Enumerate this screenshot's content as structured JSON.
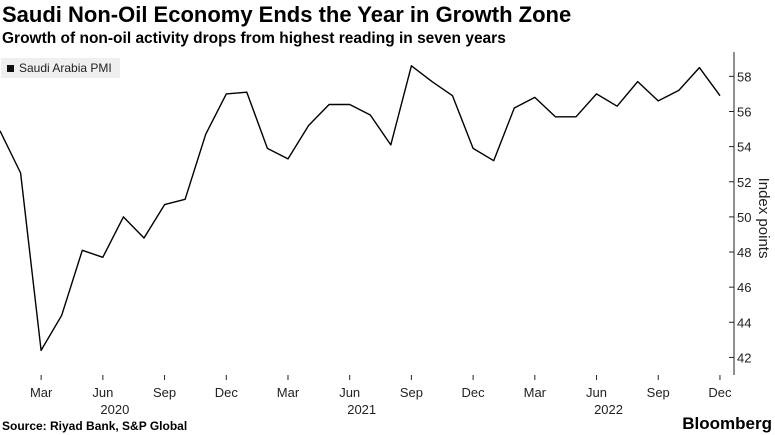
{
  "title": "Saudi Non-Oil Economy Ends the Year in Growth Zone",
  "subtitle": "Growth of non-oil activity drops from highest reading in seven years",
  "source": "Source: Riyad Bank, S&P Global",
  "brand": "Bloomberg",
  "chart_data": {
    "type": "line",
    "title": "Saudi Non-Oil Economy Ends the Year in Growth Zone",
    "subtitle": "Growth of non-oil activity drops from highest reading in seven years",
    "ylabel": "Index points",
    "ylim": [
      41,
      59.5
    ],
    "yticks": [
      42,
      44,
      46,
      48,
      50,
      52,
      54,
      56,
      58
    ],
    "y_axis_side": "right",
    "grid": false,
    "legend_placement": "top-left",
    "x_tick_labels": [
      "Mar",
      "Jun",
      "Sep",
      "Dec",
      "Mar",
      "Jun",
      "Sep",
      "Dec",
      "Mar",
      "Jun",
      "Sep",
      "Dec"
    ],
    "x_tick_dates": [
      "2020-03",
      "2020-06",
      "2020-09",
      "2020-12",
      "2021-03",
      "2021-06",
      "2021-09",
      "2021-12",
      "2022-03",
      "2022-06",
      "2022-09",
      "2022-12"
    ],
    "year_labels": [
      {
        "label": "2020",
        "at": "2020-06"
      },
      {
        "label": "2021",
        "at": "2021-06"
      },
      {
        "label": "2022",
        "at": "2022-06"
      }
    ],
    "x": [
      "2020-01",
      "2020-02",
      "2020-03",
      "2020-04",
      "2020-05",
      "2020-06",
      "2020-07",
      "2020-08",
      "2020-09",
      "2020-10",
      "2020-11",
      "2020-12",
      "2021-01",
      "2021-02",
      "2021-03",
      "2021-04",
      "2021-05",
      "2021-06",
      "2021-07",
      "2021-08",
      "2021-09",
      "2021-10",
      "2021-11",
      "2021-12",
      "2022-01",
      "2022-02",
      "2022-03",
      "2022-04",
      "2022-05",
      "2022-06",
      "2022-07",
      "2022-08",
      "2022-09",
      "2022-10",
      "2022-11",
      "2022-12"
    ],
    "series": [
      {
        "name": "Saudi Arabia PMI",
        "color": "#000000",
        "values": [
          54.9,
          52.5,
          42.4,
          44.4,
          48.1,
          47.7,
          50.0,
          48.8,
          50.7,
          51.0,
          54.7,
          57.0,
          57.1,
          53.9,
          53.3,
          55.2,
          56.4,
          56.4,
          55.8,
          54.1,
          58.6,
          57.7,
          56.9,
          53.9,
          53.2,
          56.2,
          56.8,
          55.7,
          55.7,
          57.0,
          56.3,
          57.7,
          56.6,
          57.2,
          58.5,
          56.9
        ]
      }
    ]
  }
}
